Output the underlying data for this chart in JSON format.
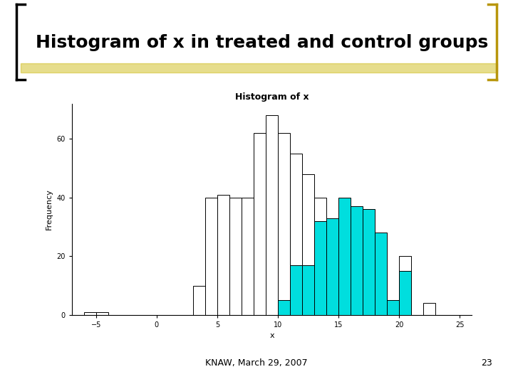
{
  "title": "Histogram of x",
  "xlabel": "x",
  "ylabel": "Frequency",
  "slide_title": "Histogram of x in treated and control groups",
  "footer_text": "KNAW, March 29, 2007",
  "footer_page": "23",
  "xlim": [
    -7,
    26
  ],
  "ylim": [
    0,
    72
  ],
  "yticks": [
    0,
    20,
    40,
    60
  ],
  "xticks": [
    -5,
    0,
    5,
    10,
    15,
    20,
    25
  ],
  "control_bins": [
    -6,
    -5,
    -4,
    -3,
    0,
    1,
    3,
    4,
    5,
    6,
    7,
    8,
    9,
    10,
    11,
    12,
    13,
    14,
    15,
    16,
    17,
    18,
    19,
    20,
    21,
    22,
    23
  ],
  "control_heights": [
    1,
    1,
    0,
    0,
    0,
    0,
    10,
    40,
    41,
    40,
    40,
    62,
    68,
    62,
    55,
    48,
    40,
    32,
    28,
    0,
    17,
    17,
    0,
    20,
    0,
    4,
    0
  ],
  "treated_bins": [
    10,
    11,
    12,
    13,
    14,
    15,
    16,
    17,
    18,
    19,
    20,
    21
  ],
  "treated_heights": [
    5,
    17,
    17,
    32,
    33,
    40,
    37,
    36,
    28,
    5,
    15,
    4
  ],
  "control_color": "#ffffff",
  "control_edge": "#000000",
  "treated_color": "#00dede",
  "treated_edge": "#000000",
  "slide_bg": "#ffffff",
  "left_bracket_color": "#000000",
  "right_bracket_color": "#b8960c",
  "title_bar_color": "#c8b400",
  "title_fontsize": 18,
  "hist_title_fontsize": 9,
  "axis_fontsize": 8,
  "footer_fontsize": 9
}
